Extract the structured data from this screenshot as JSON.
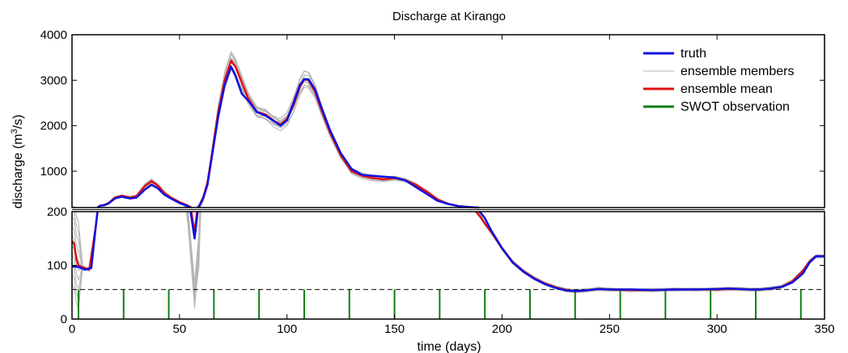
{
  "chart_data": {
    "type": "line",
    "title": "Discharge at Kirango",
    "xlabel": "time (days)",
    "ylabel": "discharge (m³/s)",
    "ylabel_base": "discharge (m",
    "ylabel_sup": "3",
    "ylabel_tail": "/s)",
    "xlim": [
      0,
      350
    ],
    "xticks": [
      0,
      50,
      100,
      150,
      200,
      250,
      300,
      350
    ],
    "upper_panel": {
      "ylim": [
        200,
        4000
      ],
      "yticks": [
        1000,
        2000,
        3000,
        4000
      ]
    },
    "lower_panel": {
      "ylim": [
        0,
        200
      ],
      "yticks": [
        0,
        100,
        200
      ]
    },
    "split_value": 200,
    "dashed_threshold": 55,
    "legend": {
      "position": "top-right",
      "entries": [
        {
          "label": "truth",
          "color": "#1010e0"
        },
        {
          "label": "ensemble members",
          "color": "#b4b4b4"
        },
        {
          "label": "ensemble mean",
          "color": "#e01010"
        },
        {
          "label": "SWOT observation",
          "color": "#108010"
        }
      ]
    },
    "swot_observation_days": [
      3,
      24,
      45,
      66,
      87,
      108,
      129,
      150,
      171,
      192,
      213,
      234,
      255,
      276,
      297,
      318,
      339
    ],
    "swot_observation_value": 55,
    "series": [
      {
        "name": "truth",
        "color": "#1010e0",
        "x": [
          0,
          3,
          6,
          9,
          11,
          13,
          15,
          17,
          20,
          23,
          27,
          30,
          34,
          37,
          40,
          43,
          46,
          50,
          54,
          57,
          59,
          61,
          63,
          65,
          68,
          71,
          74,
          76,
          79,
          82,
          86,
          90,
          94,
          97,
          100,
          103,
          106,
          108,
          110,
          113,
          116,
          120,
          125,
          130,
          135,
          140,
          145,
          150,
          155,
          160,
          165,
          170,
          175,
          180,
          185,
          188,
          190,
          192,
          195,
          200,
          205,
          210,
          215,
          220,
          225,
          230,
          234,
          238,
          245,
          250,
          260,
          270,
          280,
          290,
          300,
          305,
          310,
          315,
          320,
          325,
          330,
          335,
          340,
          343,
          346,
          350
        ],
        "y": [
          98,
          97,
          92,
          95,
          170,
          240,
          250,
          290,
          400,
          440,
          400,
          420,
          600,
          700,
          620,
          480,
          400,
          300,
          230,
          150,
          220,
          400,
          700,
          1300,
          2200,
          2900,
          3300,
          3100,
          2700,
          2550,
          2300,
          2220,
          2100,
          2000,
          2120,
          2500,
          2900,
          3020,
          3020,
          2800,
          2400,
          1900,
          1400,
          1050,
          920,
          900,
          880,
          860,
          800,
          650,
          500,
          350,
          280,
          230,
          210,
          205,
          198,
          188,
          165,
          132,
          105,
          88,
          75,
          65,
          58,
          53,
          52,
          53,
          56,
          55,
          55,
          54,
          55,
          55,
          56,
          57,
          56,
          55,
          55,
          57,
          60,
          68,
          85,
          105,
          117,
          117
        ]
      },
      {
        "name": "ensemble mean",
        "color": "#e01010",
        "x": [
          0,
          1,
          2,
          3,
          5,
          8,
          11,
          13,
          15,
          17,
          20,
          23,
          27,
          30,
          34,
          37,
          40,
          43,
          46,
          50,
          54,
          57,
          59,
          61,
          63,
          65,
          68,
          71,
          74,
          76,
          79,
          82,
          86,
          90,
          94,
          97,
          100,
          103,
          106,
          108,
          110,
          113,
          116,
          120,
          125,
          130,
          135,
          140,
          145,
          150,
          155,
          160,
          165,
          170,
          175,
          180,
          185,
          188,
          190,
          192,
          195,
          200,
          205,
          210,
          215,
          220,
          225,
          230,
          234,
          238,
          245,
          250,
          260,
          270,
          280,
          290,
          300,
          305,
          310,
          315,
          320,
          325,
          330,
          335,
          340,
          343,
          346,
          350
        ],
        "y": [
          145,
          140,
          112,
          100,
          96,
          92,
          170,
          240,
          260,
          300,
          420,
          460,
          420,
          450,
          680,
          780,
          680,
          520,
          420,
          320,
          240,
          160,
          230,
          420,
          750,
          1350,
          2300,
          3000,
          3430,
          3300,
          2950,
          2600,
          2300,
          2250,
          2100,
          2030,
          2150,
          2450,
          2850,
          3020,
          3000,
          2750,
          2350,
          1850,
          1350,
          1000,
          900,
          850,
          820,
          850,
          800,
          700,
          550,
          380,
          280,
          230,
          210,
          200,
          190,
          178,
          162,
          132,
          106,
          89,
          76,
          66,
          59,
          54,
          52,
          53,
          56,
          55,
          54,
          54,
          55,
          55,
          55,
          56,
          56,
          55,
          55,
          57,
          60,
          70,
          90,
          107,
          117,
          117
        ]
      }
    ],
    "ensemble_members_count": 10
  }
}
